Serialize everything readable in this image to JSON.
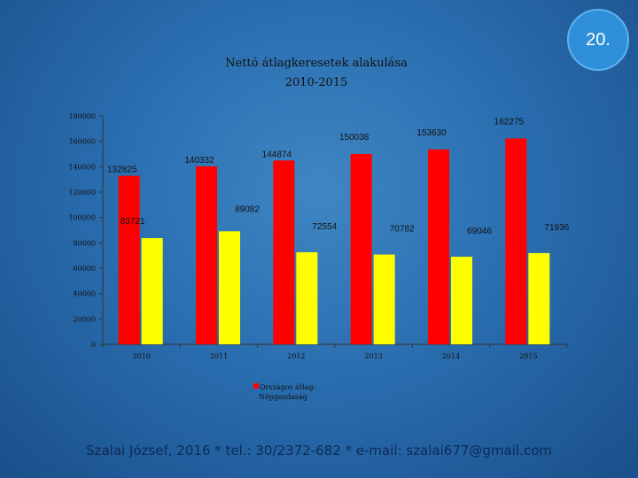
{
  "slide": {
    "number": "20.",
    "footer": "Szalai József, 2016 * tel.: 30/2372-682 * e-mail: szalai677@gmail.com"
  },
  "chart_data": {
    "type": "bar",
    "title_lines": [
      "Nettó átlagkeresetek alakulása",
      "2010-2015"
    ],
    "categories": [
      "2010",
      "2011",
      "2012",
      "2013",
      "2014",
      "2015"
    ],
    "series": [
      {
        "name": "Országos átlag",
        "color": "#ff0000",
        "values": [
          132825,
          140332,
          144874,
          150038,
          153630,
          162275
        ]
      },
      {
        "name": "Népgazdaság",
        "color": "#ffff00",
        "values": [
          83721,
          89082,
          72554,
          70782,
          69046,
          71936
        ]
      }
    ],
    "y_ticks": [
      "0",
      "20000",
      "40000",
      "60000",
      "80000",
      "100000",
      "120000",
      "140000",
      "160000",
      "180000"
    ],
    "ylim": [
      0,
      180000
    ],
    "grid": false,
    "legend_position": "bottom",
    "legend_text": "Országos átlag-\nNépgazdaság"
  }
}
